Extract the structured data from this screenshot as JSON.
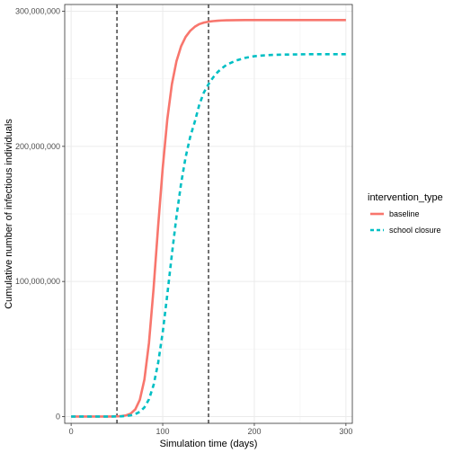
{
  "chart_data": {
    "type": "line",
    "xlabel": "Simulation time (days)",
    "ylabel": "Cumulative number of infectious individuals",
    "xlim": [
      -7,
      307
    ],
    "ylim": [
      -5000000,
      305000000
    ],
    "x_ticks": [
      0,
      100,
      200,
      300
    ],
    "x_tick_labels": [
      "0",
      "100",
      "200",
      "300"
    ],
    "y_ticks": [
      0,
      100000000,
      200000000,
      300000000
    ],
    "y_tick_labels": [
      "0",
      "100,000,000",
      "200,000,000",
      "300,000,000"
    ],
    "grid": true,
    "vlines": [
      50,
      150
    ],
    "legend": {
      "title": "intervention_type",
      "position": "right"
    },
    "x": [
      0,
      10,
      20,
      30,
      40,
      50,
      55,
      60,
      65,
      70,
      75,
      80,
      85,
      90,
      95,
      100,
      105,
      110,
      115,
      120,
      125,
      130,
      135,
      140,
      145,
      150,
      155,
      160,
      165,
      170,
      180,
      190,
      200,
      210,
      220,
      230,
      240,
      250,
      260,
      270,
      280,
      290,
      300
    ],
    "series": [
      {
        "name": "baseline",
        "color": "#F8766D",
        "dash": "solid",
        "values": [
          0,
          0,
          0,
          0,
          30000,
          150000,
          350000,
          900000,
          2200000,
          5300000,
          12400000,
          27400000,
          54600000,
          94600000,
          141000000,
          184000000,
          220000000,
          246000000,
          263000000,
          274000000,
          281000000,
          285500000,
          288500000,
          290500000,
          291600000,
          292300000,
          292700000,
          293000000,
          293200000,
          293300000,
          293400000,
          293450000,
          293500000,
          293500000,
          293500000,
          293500000,
          293500000,
          293500000,
          293500000,
          293500000,
          293500000,
          293500000,
          293500000
        ]
      },
      {
        "name": "school closure",
        "color": "#00BFC4",
        "dash": "dashed",
        "values": [
          0,
          0,
          0,
          0,
          20000,
          100000,
          200000,
          450000,
          900000,
          1800000,
          3500000,
          6800000,
          12800000,
          23300000,
          39700000,
          62400000,
          90300000,
          120000000,
          148000000,
          172300000,
          192000000,
          207000000,
          218200000,
          231000000,
          240000000,
          246000000,
          251000000,
          255000000,
          258000000,
          260500000,
          263500000,
          265500000,
          266700000,
          267300000,
          267700000,
          267900000,
          268000000,
          268100000,
          268200000,
          268200000,
          268200000,
          268200000,
          268200000
        ]
      }
    ]
  }
}
